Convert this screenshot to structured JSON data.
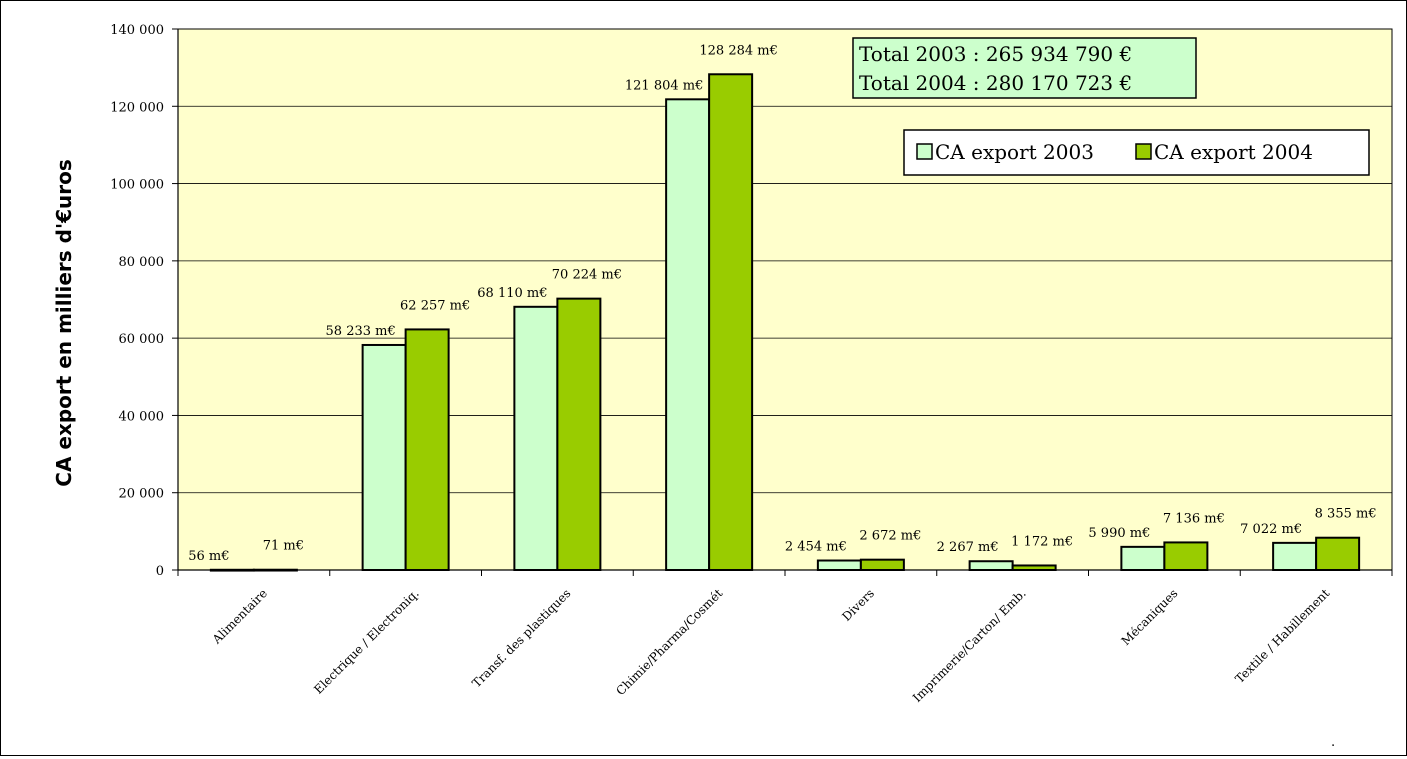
{
  "colors": {
    "plot_bg": "#FFFFCC",
    "series_2003": "#CCFFCC",
    "series_2004": "#99CC00",
    "gridline": "#000000",
    "totals_bg": "#CCFFCC"
  },
  "chart_data": {
    "type": "bar",
    "ylabel": "CA export en milliers d'€uros",
    "ylim": [
      0,
      140000
    ],
    "yticks": [
      0,
      20000,
      40000,
      60000,
      80000,
      100000,
      120000,
      140000
    ],
    "ytick_labels": [
      "0",
      "20 000",
      "40 000",
      "60 000",
      "80 000",
      "100 000",
      "120 000",
      "140 000"
    ],
    "grid": true,
    "legend_position": "top-right",
    "categories": [
      "Alimentaire",
      "Electrique / Electroniq.",
      "Transf. des plastiques",
      "Chimie/Pharma/Cosmét",
      "Divers",
      "Imprimerie/Carton/ Emb.",
      "Mécaniques",
      "Textile / Habillement"
    ],
    "series": [
      {
        "name": "CA export 2003",
        "values": [
          56,
          58233,
          68110,
          121804,
          2454,
          2267,
          5990,
          7022
        ],
        "labels": [
          "56 m€",
          "58 233 m€",
          "68 110 m€",
          "121 804 m€",
          "2 454 m€",
          "2 267 m€",
          "5 990 m€",
          "7 022 m€"
        ]
      },
      {
        "name": "CA export 2004",
        "values": [
          71,
          62257,
          70224,
          128284,
          2672,
          1172,
          7136,
          8355
        ],
        "labels": [
          "71 m€",
          "62 257 m€",
          "70 224 m€",
          "128 284 m€",
          "2 672 m€",
          "1 172 m€",
          "7 136 m€",
          "8 355 m€"
        ]
      }
    ],
    "annotations": [
      "Total 2003 : 265 934 790 €",
      "Total 2004 : 280 170 723 €"
    ],
    "footnote": "."
  }
}
